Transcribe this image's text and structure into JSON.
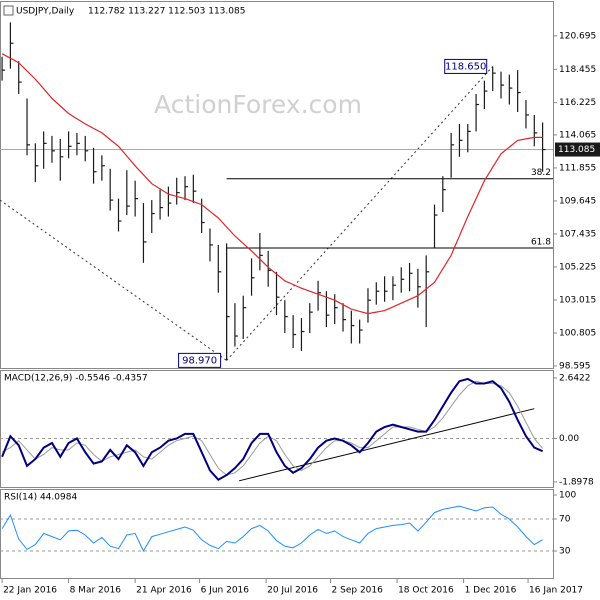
{
  "chart_data": [
    {
      "type": "ohlc",
      "title": "USDJPY,Daily",
      "ohlc_text": "112.782 113.227 112.503 113.085",
      "watermark": "ActionForex.com",
      "x": [
        0,
        4,
        8,
        12,
        16,
        20,
        24,
        28,
        32,
        36,
        40,
        44,
        48,
        52,
        56,
        60,
        64,
        68,
        72,
        76,
        80,
        84,
        88,
        92,
        96,
        100,
        104,
        108,
        112,
        116,
        120,
        124,
        128,
        132,
        136,
        140,
        144,
        148,
        152,
        156,
        160,
        164,
        168,
        172,
        176,
        180,
        184,
        188,
        192,
        196,
        200,
        204,
        208,
        212,
        216,
        220,
        224,
        228,
        232,
        236,
        240,
        244,
        248,
        252,
        256,
        260
      ],
      "xlim": [
        -1,
        265
      ],
      "high": [
        119.3,
        121.6,
        119.0,
        116.5,
        113.5,
        114.3,
        114.0,
        113.8,
        114.3,
        114.2,
        114.0,
        113.2,
        112.7,
        111.8,
        109.8,
        111.7,
        111.0,
        109.5,
        109.7,
        110.4,
        110.6,
        111.2,
        111.3,
        111.4,
        109.8,
        107.8,
        106.7,
        106.8,
        102.8,
        103.3,
        105.8,
        107.5,
        106.3,
        104.9,
        103.0,
        102.0,
        101.8,
        102.8,
        104.3,
        103.6,
        103.4,
        102.8,
        102.3,
        101.7,
        103.8,
        104.2,
        104.6,
        104.6,
        105.2,
        105.5,
        105.1,
        106.0,
        109.4,
        111.3,
        114.2,
        114.8,
        114.8,
        116.8,
        117.7,
        118.65,
        118.3,
        118.1,
        118.4,
        116.4,
        115.4,
        114.9
      ],
      "low": [
        117.7,
        118.5,
        116.8,
        112.7,
        110.9,
        111.8,
        112.2,
        111.0,
        112.5,
        112.7,
        112.3,
        110.8,
        111.0,
        109.0,
        107.6,
        108.7,
        108.6,
        105.5,
        107.5,
        108.4,
        108.6,
        109.4,
        109.7,
        109.5,
        107.5,
        105.6,
        103.5,
        98.97,
        99.9,
        100.4,
        103.3,
        105.0,
        103.9,
        102.0,
        100.8,
        99.8,
        99.6,
        100.8,
        102.3,
        101.2,
        101.4,
        100.9,
        100.1,
        100.1,
        101.5,
        102.7,
        102.9,
        103.0,
        103.5,
        103.6,
        102.5,
        101.2,
        106.5,
        108.9,
        111.2,
        112.6,
        112.9,
        114.3,
        115.8,
        117.0,
        116.5,
        116.1,
        115.6,
        114.5,
        113.3,
        111.6
      ],
      "close": [
        118.4,
        120.2,
        117.6,
        113.4,
        112.0,
        113.5,
        113.0,
        112.6,
        113.3,
        113.5,
        113.0,
        111.6,
        112.0,
        109.7,
        108.3,
        109.3,
        109.8,
        106.9,
        108.8,
        109.2,
        109.5,
        110.2,
        110.6,
        110.3,
        108.2,
        106.7,
        104.9,
        101.9,
        100.6,
        102.5,
        104.5,
        106.0,
        105.0,
        103.2,
        101.9,
        100.7,
        100.9,
        102.2,
        103.5,
        102.0,
        102.5,
        101.7,
        101.3,
        101.0,
        103.0,
        103.6,
        103.6,
        104.0,
        104.4,
        104.8,
        103.9,
        104.9,
        108.7,
        110.4,
        113.4,
        113.7,
        114.3,
        116.1,
        117.0,
        118.2,
        117.4,
        117.2,
        116.9,
        115.4,
        114.2,
        113.085
      ],
      "color": "#1a1a1a",
      "overlays": [
        {
          "color": "#e0262a",
          "values": [
            119.5,
            119.2,
            118.9,
            118.35,
            117.8,
            117.15,
            116.5,
            116.0,
            115.5,
            115.15,
            114.8,
            114.5,
            114.2,
            113.75,
            113.3,
            112.65,
            112.0,
            111.4,
            110.8,
            110.45,
            110.1,
            109.95,
            109.8,
            109.6,
            109.4,
            108.95,
            108.5,
            107.9,
            107.3,
            106.8,
            106.3,
            105.75,
            105.2,
            104.75,
            104.3,
            104.05,
            103.8,
            103.6,
            103.4,
            103.2,
            103.0,
            102.7,
            102.4,
            102.25,
            102.1,
            102.2,
            102.3,
            102.55,
            102.8,
            103.05,
            103.3,
            103.75,
            104.2,
            105.1,
            106.0,
            107.3,
            108.6,
            109.8,
            111.0,
            111.9,
            112.8,
            113.25,
            113.7,
            113.8,
            113.9,
            113.9
          ]
        }
      ],
      "ylim": [
        98.46,
        123.03
      ],
      "yticks": [
        98.595,
        100.805,
        103.015,
        105.225,
        107.435,
        109.645,
        111.855,
        114.065,
        116.225,
        118.455,
        120.695
      ],
      "last_price": 113.085,
      "annotations": [
        {
          "x": 236,
          "value": 118.65,
          "label": "118.650"
        },
        {
          "x": 108,
          "value": 98.97,
          "label": "98.970"
        }
      ],
      "levels": [
        {
          "x": 108,
          "value": 111.13,
          "label": "38.2"
        },
        {
          "x": 108,
          "value": 106.49,
          "label": "61.8"
        }
      ],
      "trendlines": [
        {
          "x": [
            -1,
            108
          ],
          "values": [
            109.7,
            98.97
          ]
        },
        {
          "x": [
            108,
            236
          ],
          "values": [
            98.97,
            118.65
          ]
        }
      ]
    },
    {
      "type": "line",
      "title": "MACD(12,26,9) -0.5546 -0.4357",
      "series": [
        {
          "color": "#9a9a9a",
          "values": [
            -0.6,
            -0.4,
            -0.1,
            -0.5,
            -0.9,
            -0.7,
            -0.4,
            -0.5,
            -0.5,
            -0.2,
            -0.3,
            -0.7,
            -1.0,
            -0.8,
            -0.7,
            -0.6,
            -0.5,
            -0.8,
            -0.9,
            -0.6,
            -0.3,
            -0.1,
            0.0,
            0.1,
            -0.1,
            -0.7,
            -1.3,
            -1.6,
            -1.5,
            -1.2,
            -0.7,
            -0.2,
            0.1,
            -0.1,
            -0.7,
            -1.2,
            -1.4,
            -1.2,
            -0.8,
            -0.4,
            -0.1,
            -0.1,
            -0.2,
            -0.4,
            -0.4,
            -0.1,
            0.2,
            0.5,
            0.5,
            0.5,
            0.4,
            0.3,
            0.5,
            0.9,
            1.4,
            1.9,
            2.3,
            2.5,
            2.4,
            2.4,
            2.3,
            2.0,
            1.4,
            0.7,
            0.0,
            -0.4357
          ]
        },
        {
          "color": "#000080",
          "values": [
            -0.8,
            0.1,
            -0.3,
            -1.2,
            -0.9,
            -0.4,
            -0.2,
            -0.8,
            -0.2,
            0.0,
            -0.6,
            -1.1,
            -1.0,
            -0.5,
            -0.9,
            -0.3,
            -0.6,
            -1.2,
            -0.6,
            -0.4,
            -0.1,
            0.0,
            0.2,
            0.2,
            -0.6,
            -1.4,
            -1.8,
            -1.6,
            -1.3,
            -0.9,
            -0.2,
            0.2,
            0.2,
            -0.6,
            -1.2,
            -1.5,
            -1.3,
            -0.9,
            -0.4,
            -0.1,
            0.0,
            -0.1,
            -0.3,
            -0.6,
            -0.2,
            0.3,
            0.5,
            0.6,
            0.5,
            0.4,
            0.3,
            0.3,
            0.8,
            1.4,
            2.0,
            2.5,
            2.6,
            2.4,
            2.4,
            2.5,
            2.2,
            1.6,
            0.8,
            0.1,
            -0.4,
            -0.5546
          ]
        }
      ],
      "ylim": [
        -2.12,
        2.99
      ],
      "yticks": [
        2.6422,
        {
          "value": 0,
          "label": "0.00"
        },
        -1.8978
      ],
      "ref_lines": [
        0
      ],
      "trendlines": [
        {
          "x": [
            114,
            256
          ],
          "values": [
            -1.85,
            1.3
          ]
        }
      ]
    },
    {
      "type": "line",
      "title": "RSI(14) 44.0984",
      "series": [
        {
          "color": "#1e90ff",
          "values": [
            58,
            75,
            45,
            32,
            38,
            52,
            48,
            44,
            55,
            56,
            50,
            40,
            47,
            36,
            33,
            50,
            52,
            30,
            48,
            51,
            54,
            57,
            60,
            56,
            44,
            37,
            33,
            42,
            40,
            48,
            58,
            62,
            55,
            43,
            36,
            34,
            40,
            50,
            57,
            52,
            55,
            48,
            44,
            40,
            52,
            58,
            60,
            62,
            63,
            65,
            55,
            66,
            78,
            82,
            84,
            86,
            83,
            80,
            84,
            85,
            76,
            70,
            60,
            48,
            38,
            44.0984
          ]
        }
      ],
      "ylim": [
        -3.75,
        107.5
      ],
      "yticks": [
        100,
        70,
        30
      ],
      "ref_lines": [
        70,
        30
      ],
      "xticks": [
        {
          "value": 0,
          "label": "22 Jan 2016"
        },
        {
          "value": 32,
          "label": "8 Mar 2016"
        },
        {
          "value": 64,
          "label": "21 Apr 2016"
        },
        {
          "value": 95,
          "label": "6 Jun 2016"
        },
        {
          "value": 127,
          "label": "20 Jul 2016"
        },
        {
          "value": 158,
          "label": "2 Sep 2016"
        },
        {
          "value": 190,
          "label": "18 Oct 2016"
        },
        {
          "value": 222,
          "label": "1 Dec 2016"
        },
        {
          "value": 253,
          "label": "16 Jan 2017"
        }
      ]
    }
  ]
}
